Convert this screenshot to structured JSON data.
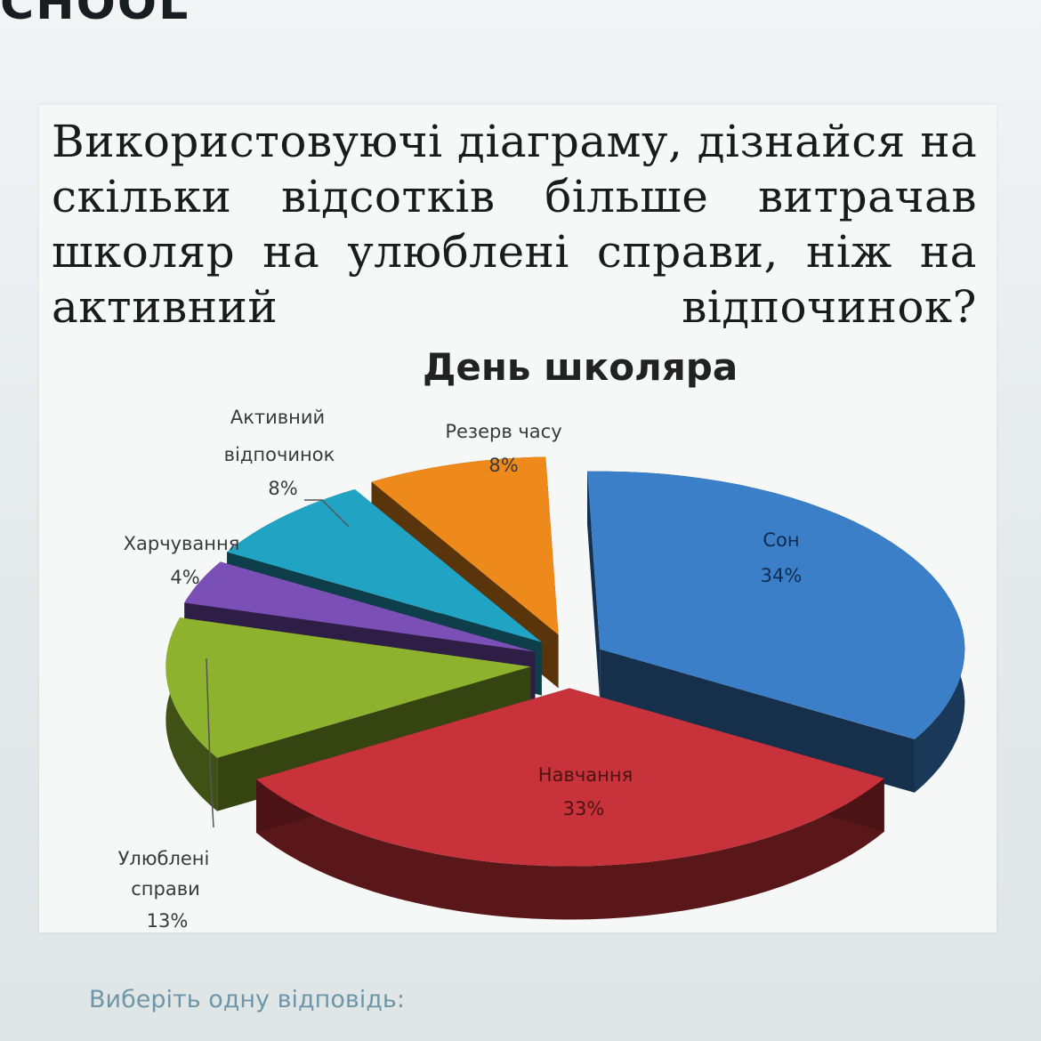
{
  "header": {
    "brand_fragment": "CHOOL"
  },
  "question": {
    "lines": [
      "Використовуючі діаграму, дізнайся на",
      "скільки відсотків більше витрачав",
      "школяр на улюблені справи, ніж на",
      "активний відпочинок?"
    ]
  },
  "chart_data": {
    "type": "pie",
    "title": "День школяра",
    "slices": [
      {
        "label": "Сон",
        "value": 34,
        "value_label": "34%",
        "color": "#3a7fc8"
      },
      {
        "label": "Навчання",
        "value": 33,
        "value_label": "33%",
        "color": "#c8323a"
      },
      {
        "label": "Улюблені справи",
        "value": 13,
        "value_label": "13%",
        "color": "#8db32e"
      },
      {
        "label": "Харчування",
        "value": 4,
        "value_label": "4%",
        "color": "#7a4fb6"
      },
      {
        "label": "Активний відпочинок",
        "value": 8,
        "value_label": "8%",
        "color": "#21a3c4"
      },
      {
        "label": "Резерв часу",
        "value": 8,
        "value_label": "8%",
        "color": "#ee8a1c"
      }
    ],
    "label_lines": {
      "son": [
        "Сон",
        "34%"
      ],
      "navchannia": [
        "Навчання",
        "33%"
      ],
      "ulubleni": [
        "Улюблені",
        "справи",
        "13%"
      ],
      "kharchuvannia": [
        "Харчування",
        "4%"
      ],
      "aktyvnyi": [
        "Активний",
        "відпочинок",
        "8%"
      ],
      "rezerv": [
        "Резерв часу",
        "8%"
      ]
    },
    "style": "exploded-3d"
  },
  "answer": {
    "prompt": "Виберіть одну відповідь:"
  }
}
